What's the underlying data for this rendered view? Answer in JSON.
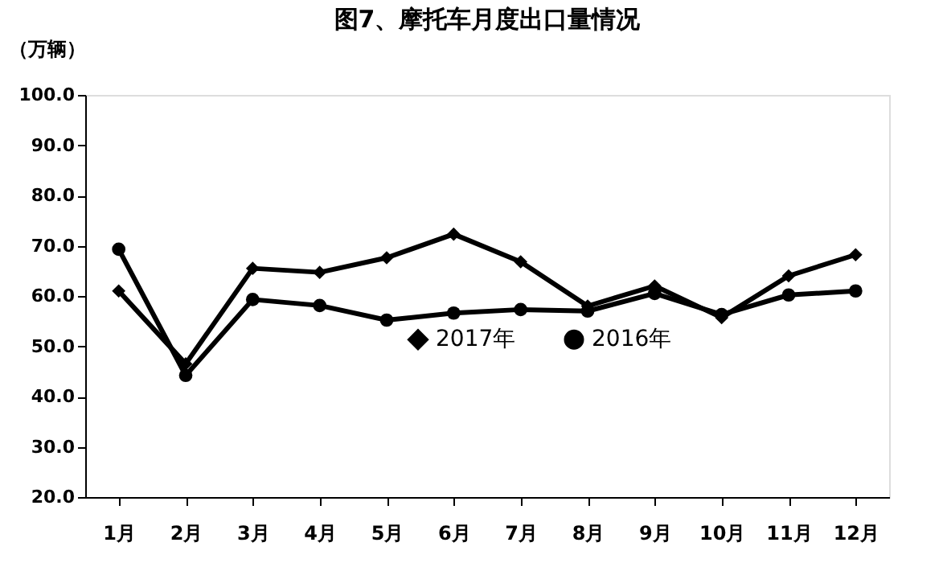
{
  "chart_data": {
    "type": "line",
    "title": "图7、摩托车月度出口量情况",
    "ylabel": "（万辆）",
    "categories": [
      "1月",
      "2月",
      "3月",
      "4月",
      "5月",
      "6月",
      "7月",
      "8月",
      "9月",
      "10月",
      "11月",
      "12月"
    ],
    "series": [
      {
        "name": "2017年",
        "color": "#000000",
        "marker": "diamond",
        "values": [
          61.0,
          46.5,
          65.5,
          64.7,
          67.6,
          72.3,
          66.8,
          58.0,
          62.0,
          55.7,
          64.0,
          68.2
        ]
      },
      {
        "name": "2016年",
        "color": "#000000",
        "marker": "circle",
        "values": [
          69.3,
          44.2,
          59.3,
          58.1,
          55.2,
          56.6,
          57.3,
          57.0,
          60.5,
          56.3,
          60.2,
          61.0
        ]
      }
    ],
    "ylim": [
      20,
      100
    ],
    "yticks": [
      {
        "value": 20,
        "label": "20.0"
      },
      {
        "value": 30,
        "label": "30.0"
      },
      {
        "value": 40,
        "label": "40.0"
      },
      {
        "value": 50,
        "label": "50.0"
      },
      {
        "value": 60,
        "label": "60.0"
      },
      {
        "value": 70,
        "label": "70.0"
      },
      {
        "value": 80,
        "label": "80.0"
      },
      {
        "value": 90,
        "label": "90.0"
      },
      {
        "value": 100,
        "label": "100.0"
      }
    ],
    "grid": false,
    "legend": "bottom",
    "line_style": "solid"
  }
}
